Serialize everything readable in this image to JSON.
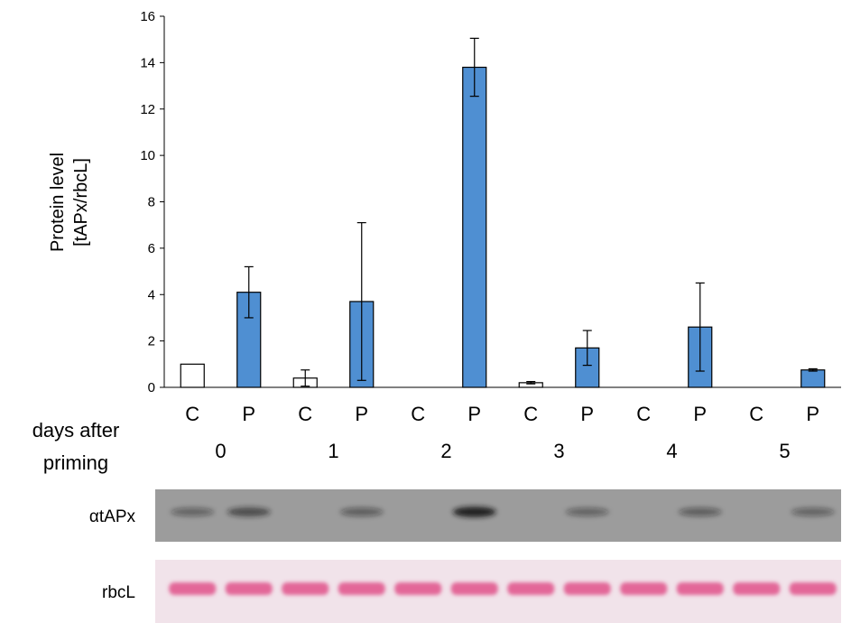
{
  "chart_data": {
    "type": "bar",
    "ylabel_lines": [
      "Protein level",
      "[tAPx/rbcL]"
    ],
    "ylim": [
      0,
      16
    ],
    "yticks": [
      0,
      2,
      4,
      6,
      8,
      10,
      12,
      14,
      16
    ],
    "xlabel_lines": [
      "days after",
      "priming"
    ],
    "days": [
      "0",
      "1",
      "2",
      "3",
      "4",
      "5"
    ],
    "series": [
      {
        "name": "C",
        "values": [
          1.0,
          0.4,
          0.0,
          0.2,
          0.0,
          0.0
        ],
        "errors": [
          0.0,
          0.35,
          0.0,
          0.05,
          0.0,
          0.0
        ]
      },
      {
        "name": "P",
        "values": [
          4.1,
          3.7,
          13.8,
          1.7,
          2.6,
          0.75
        ],
        "errors": [
          1.1,
          3.4,
          1.25,
          0.75,
          1.9,
          0.05
        ]
      }
    ],
    "colors": {
      "C": "#ffffff",
      "P": "#4f8fd2",
      "edge": "#000000"
    },
    "grid": false,
    "legend": "none"
  },
  "blots": [
    {
      "label": "αtAPx",
      "intensity": [
        0.25,
        0.5,
        0.0,
        0.3,
        0.0,
        0.9,
        0.0,
        0.25,
        0.0,
        0.3,
        0.0,
        0.25
      ]
    },
    {
      "label": "rbcL",
      "intensity": [
        1,
        1,
        1,
        1,
        1,
        1,
        1,
        1,
        1,
        1,
        1,
        1
      ]
    }
  ]
}
